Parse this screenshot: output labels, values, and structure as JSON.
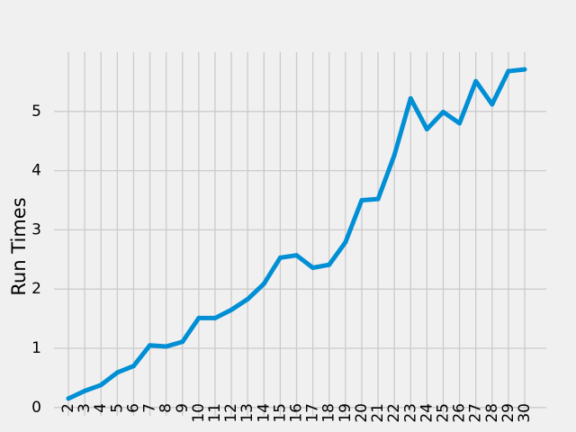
{
  "chart_data": {
    "type": "line",
    "title": "",
    "xlabel": "",
    "ylabel": "Run Times",
    "grid": true,
    "x": [
      2,
      3,
      4,
      5,
      6,
      7,
      8,
      9,
      10,
      11,
      12,
      13,
      14,
      15,
      16,
      17,
      18,
      19,
      20,
      21,
      22,
      23,
      24,
      25,
      26,
      27,
      28,
      29,
      30
    ],
    "y_ticks": [
      0,
      1,
      2,
      3,
      4,
      5
    ],
    "ylim": [
      -0.14,
      6.0
    ],
    "series": [
      {
        "color": "#008fd5",
        "values": [
          0.15,
          0.28,
          0.38,
          0.59,
          0.7,
          1.05,
          1.03,
          1.11,
          1.51,
          1.51,
          1.65,
          1.83,
          2.09,
          2.53,
          2.57,
          2.36,
          2.41,
          2.79,
          3.5,
          3.52,
          4.26,
          5.22,
          4.7,
          4.99,
          4.8,
          5.51,
          5.12,
          5.68,
          5.71
        ]
      }
    ]
  }
}
